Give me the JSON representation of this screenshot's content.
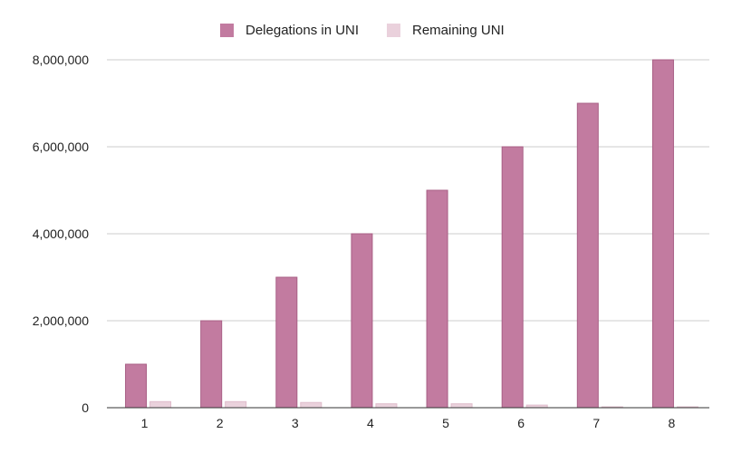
{
  "chart_data": {
    "type": "bar",
    "title": "",
    "xlabel": "",
    "ylabel": "",
    "categories": [
      "1",
      "2",
      "3",
      "4",
      "5",
      "6",
      "7",
      "8"
    ],
    "series": [
      {
        "name": "Delegations in UNI",
        "color": "#c27ba0",
        "values": [
          1000000,
          2000000,
          3000000,
          4000000,
          5000000,
          6000000,
          7000000,
          8000000
        ]
      },
      {
        "name": "Remaining UNI",
        "color": "#ead1dc",
        "values": [
          140000,
          140000,
          120000,
          90000,
          90000,
          60000,
          20000,
          20000
        ]
      }
    ],
    "ylim": [
      0,
      8000000
    ],
    "yticks": [
      0,
      2000000,
      4000000,
      6000000,
      8000000
    ],
    "ytick_labels": [
      "0",
      "2,000,000",
      "4,000,000",
      "6,000,000",
      "8,000,000"
    ],
    "grid": true,
    "legend_position": "top-center"
  }
}
